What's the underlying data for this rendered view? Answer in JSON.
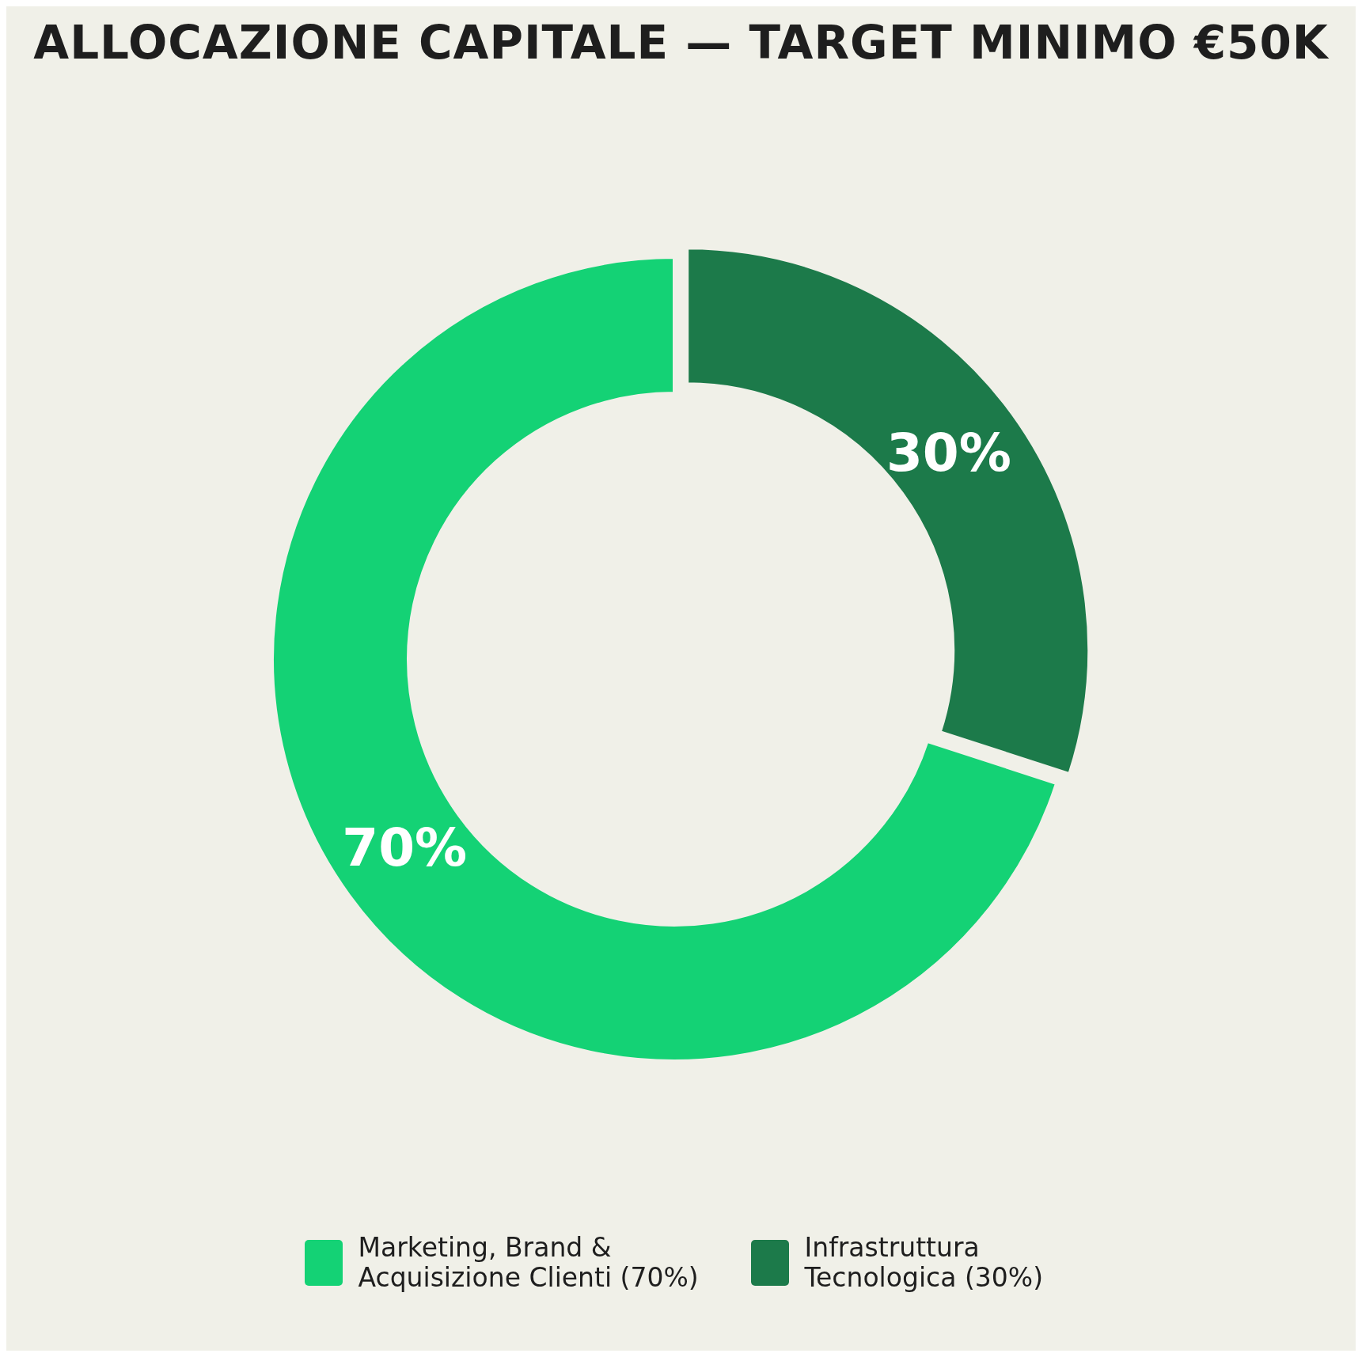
{
  "chart_data": {
    "type": "donut",
    "title": "ALLOCAZIONE CAPITALE — TARGET MINIMO €50K",
    "categories": [
      "Marketing, Brand & Acquisizione Clienti (70%)",
      "Infrastruttura Tecnologica (30%)"
    ],
    "values": [
      70,
      30
    ],
    "colors": [
      "#14d275",
      "#1c7a4a"
    ],
    "value_labels": [
      "70%",
      "30%"
    ],
    "legend": "bottom"
  }
}
